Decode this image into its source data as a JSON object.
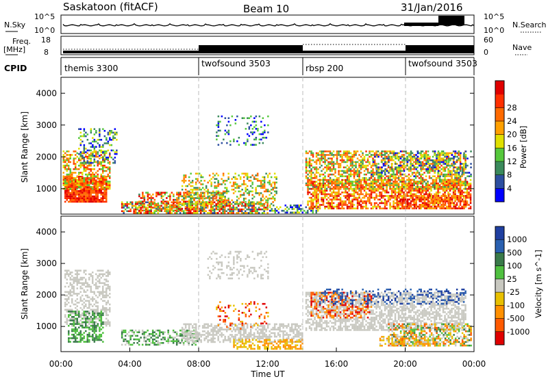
{
  "header": {
    "station": "Saskatoon (fitACF)",
    "beam": "Beam 10",
    "date": "31/Jan/2016"
  },
  "status_panels": {
    "nsky_label": "N.Sky",
    "nsearch_label": "N.Search",
    "nsky_ticks": [
      "10^5",
      "10^0"
    ],
    "nsearch_ticks": [
      "10^5",
      "10^0"
    ],
    "freq_label_1": "Freq.",
    "freq_label_2": "[MHz]",
    "freq_ticks": [
      "18",
      "8"
    ],
    "nave_label": "Nave",
    "nave_ticks": [
      "60",
      "0"
    ],
    "cpid_label": "CPID"
  },
  "chart_data": [
    {
      "type": "heatmap",
      "panel": "power",
      "ylabel": "Slant Range [km]",
      "y_ticks": [
        "1000",
        "2000",
        "3000",
        "4000"
      ],
      "ylim": [
        200,
        4500
      ],
      "xlim": [
        "00:00",
        "24:00"
      ],
      "colorbar": {
        "label": "Power [dB]",
        "ticks": [
          "4",
          "8",
          "12",
          "16",
          "20",
          "24",
          "28"
        ],
        "colors": [
          "#0000ff",
          "#2d4fa0",
          "#3b8a5c",
          "#56c83c",
          "#e0e000",
          "#ffa000",
          "#ff6a00",
          "#ff3000",
          "#e00000"
        ]
      },
      "cpid_segments": [
        {
          "label": "themis 3300",
          "start_hour": 0,
          "end_hour": 8
        },
        {
          "label": "twofsound 3503",
          "start_hour": 8,
          "end_hour": 14
        },
        {
          "label": "rbsp 200",
          "start_hour": 14,
          "end_hour": 20
        },
        {
          "label": "twofsound 3503",
          "start_hour": 20,
          "end_hour": 24
        }
      ]
    },
    {
      "type": "heatmap",
      "panel": "velocity",
      "ylabel": "Slant Range [km]",
      "xlabel": "Time UT",
      "y_ticks": [
        "1000",
        "2000",
        "3000",
        "4000"
      ],
      "x_ticks": [
        "00:00",
        "04:00",
        "08:00",
        "12:00",
        "16:00",
        "20:00",
        "00:00"
      ],
      "ylim": [
        200,
        4500
      ],
      "colorbar": {
        "label": "Velocity [m s^-1]",
        "ticks": [
          "1000",
          "500",
          "100",
          "25",
          "-25",
          "-100",
          "-500",
          "-1000"
        ],
        "colors": [
          "#1f3fa0",
          "#2a60b0",
          "#3a7a4a",
          "#50c040",
          "#c8c8c0",
          "#e8c000",
          "#ff9000",
          "#ff5a00",
          "#e00000"
        ]
      }
    }
  ],
  "colors": {
    "scatter_gray": "#c8c8c0",
    "frame": "#000000"
  }
}
